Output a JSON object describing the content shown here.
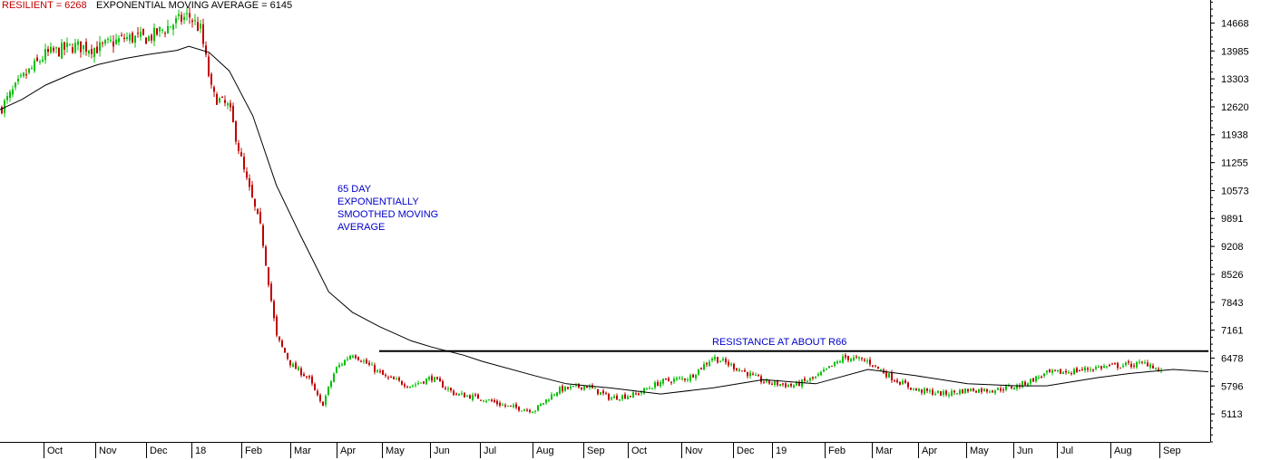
{
  "header": {
    "series_label": "RESILIENT = 6268",
    "ema_label": "EXPONENTIAL MOVING AVERAGE = 6145"
  },
  "annotations": {
    "ema_note": [
      "65 DAY",
      "EXPONENTIALLY",
      "SMOOTHED MOVING",
      "AVERAGE"
    ],
    "resistance_note": "RESISTANCE AT ABOUT R66"
  },
  "colors": {
    "up_candle": "#00c000",
    "down_candle": "#c00000",
    "ema_line": "#000000",
    "header_series": "#c00000",
    "annotation_text": "#0000cc",
    "axis": "#000000"
  },
  "chart_data": {
    "type": "line",
    "title": "",
    "xlabel": "",
    "ylabel": "",
    "x_ticks": [
      "Oct",
      "Nov",
      "Dec",
      "18",
      "Feb",
      "Mar",
      "Apr",
      "May",
      "Jun",
      "Jul",
      "Aug",
      "Sep",
      "Oct",
      "Nov",
      "Dec",
      "19",
      "Feb",
      "Mar",
      "Apr",
      "May",
      "Jun",
      "Jul",
      "Aug",
      "Sep"
    ],
    "y_ticks": [
      14668,
      13985,
      13303,
      12620,
      11938,
      11255,
      10573,
      9891,
      9208,
      8526,
      7843,
      7161,
      6478,
      5796,
      5113
    ],
    "ylim": [
      4430,
      15230
    ],
    "grid": false,
    "candles_note": "daily OHLC candlesticks, red = down day, green = up day",
    "series": [
      {
        "name": "RESILIENT",
        "style": "candlestick",
        "x": [
          "2017-09-18",
          "2017-10-01",
          "2017-10-15",
          "2017-11-01",
          "2017-11-15",
          "2017-12-01",
          "2017-12-15",
          "2018-01-01",
          "2018-01-08",
          "2018-01-15",
          "2018-01-22",
          "2018-02-01",
          "2018-02-10",
          "2018-02-20",
          "2018-03-01",
          "2018-03-10",
          "2018-03-20",
          "2018-03-28",
          "2018-04-05",
          "2018-04-15",
          "2018-04-25",
          "2018-05-05",
          "2018-05-20",
          "2018-06-01",
          "2018-06-15",
          "2018-07-01",
          "2018-07-15",
          "2018-08-01",
          "2018-08-15",
          "2018-09-01",
          "2018-09-15",
          "2018-10-01",
          "2018-10-15",
          "2018-11-01",
          "2018-11-15",
          "2018-12-01",
          "2018-12-15",
          "2019-01-01",
          "2019-01-15",
          "2019-02-01",
          "2019-02-15",
          "2019-03-01",
          "2019-03-15",
          "2019-04-01",
          "2019-04-15",
          "2019-05-01",
          "2019-05-15",
          "2019-06-01",
          "2019-06-15",
          "2019-07-01",
          "2019-07-15",
          "2019-08-01",
          "2019-08-15",
          "2019-09-01",
          "2019-09-05"
        ],
        "y": [
          12550,
          13300,
          13900,
          14100,
          14050,
          14300,
          14300,
          14700,
          14850,
          14500,
          12900,
          12600,
          11000,
          9600,
          7000,
          6300,
          6000,
          5300,
          6200,
          6600,
          6300,
          6000,
          5800,
          6000,
          5600,
          5500,
          5300,
          5200,
          5700,
          5800,
          5500,
          5600,
          5900,
          6000,
          6500,
          6200,
          5900,
          5800,
          6000,
          6500,
          6400,
          6000,
          5700,
          5600,
          5700,
          5700,
          5800,
          6100,
          6150,
          6250,
          6300,
          6350,
          5900,
          6300,
          6268
        ]
      },
      {
        "name": "EXPONENTIAL MOVING AVERAGE",
        "style": "line",
        "x": [
          "2017-09-18",
          "2017-10-01",
          "2017-10-15",
          "2017-11-01",
          "2017-11-15",
          "2017-12-01",
          "2017-12-15",
          "2018-01-01",
          "2018-01-08",
          "2018-01-20",
          "2018-02-01",
          "2018-02-15",
          "2018-03-01",
          "2018-03-15",
          "2018-04-01",
          "2018-04-15",
          "2018-05-01",
          "2018-05-20",
          "2018-06-01",
          "2018-06-20",
          "2018-07-01",
          "2018-08-01",
          "2018-08-20",
          "2018-09-15",
          "2018-10-15",
          "2018-11-15",
          "2018-12-15",
          "2019-01-15",
          "2019-02-15",
          "2019-03-15",
          "2019-04-15",
          "2019-05-15",
          "2019-06-01",
          "2019-07-01",
          "2019-07-20",
          "2019-08-15",
          "2019-09-05"
        ],
        "y": [
          12550,
          12800,
          13150,
          13450,
          13650,
          13800,
          13900,
          14000,
          14100,
          13950,
          13500,
          12400,
          10700,
          9500,
          8100,
          7600,
          7250,
          6900,
          6750,
          6550,
          6400,
          6050,
          5850,
          5750,
          5600,
          5750,
          5950,
          5850,
          6200,
          6050,
          5850,
          5800,
          5800,
          6000,
          6100,
          6200,
          6145
        ]
      }
    ],
    "reference_lines": [
      {
        "label": "RESISTANCE AT ABOUT R66",
        "y": 6650,
        "x_from": "2018-05-01",
        "x_to": "2019-09-05"
      }
    ]
  }
}
